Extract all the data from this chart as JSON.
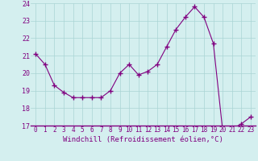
{
  "x": [
    0,
    1,
    2,
    3,
    4,
    5,
    6,
    7,
    8,
    9,
    10,
    11,
    12,
    13,
    14,
    15,
    16,
    17,
    18,
    19,
    20,
    21,
    22,
    23
  ],
  "y": [
    21.1,
    20.5,
    19.3,
    18.9,
    18.6,
    18.6,
    18.6,
    18.6,
    19.0,
    20.0,
    20.5,
    19.9,
    20.1,
    20.5,
    21.5,
    22.5,
    23.2,
    23.8,
    23.2,
    21.7,
    16.7,
    16.8,
    17.1,
    17.5
  ],
  "line_color": "#800080",
  "marker": "+",
  "markersize": 4,
  "markeredgewidth": 1.0,
  "linewidth": 0.8,
  "xlabel": "Windchill (Refroidissement éolien,°C)",
  "xlim": [
    -0.5,
    23.5
  ],
  "ylim": [
    17,
    24
  ],
  "yticks": [
    17,
    18,
    19,
    20,
    21,
    22,
    23,
    24
  ],
  "xticks": [
    0,
    1,
    2,
    3,
    4,
    5,
    6,
    7,
    8,
    9,
    10,
    11,
    12,
    13,
    14,
    15,
    16,
    17,
    18,
    19,
    20,
    21,
    22,
    23
  ],
  "bg_color": "#d4efef",
  "grid_color": "#aad4d4",
  "tick_label_color": "#800080",
  "xlabel_color": "#800080",
  "xlabel_fontsize": 6.5,
  "tick_fontsize": 5.5,
  "ytick_fontsize": 6.0,
  "axisline_color": "#800080"
}
